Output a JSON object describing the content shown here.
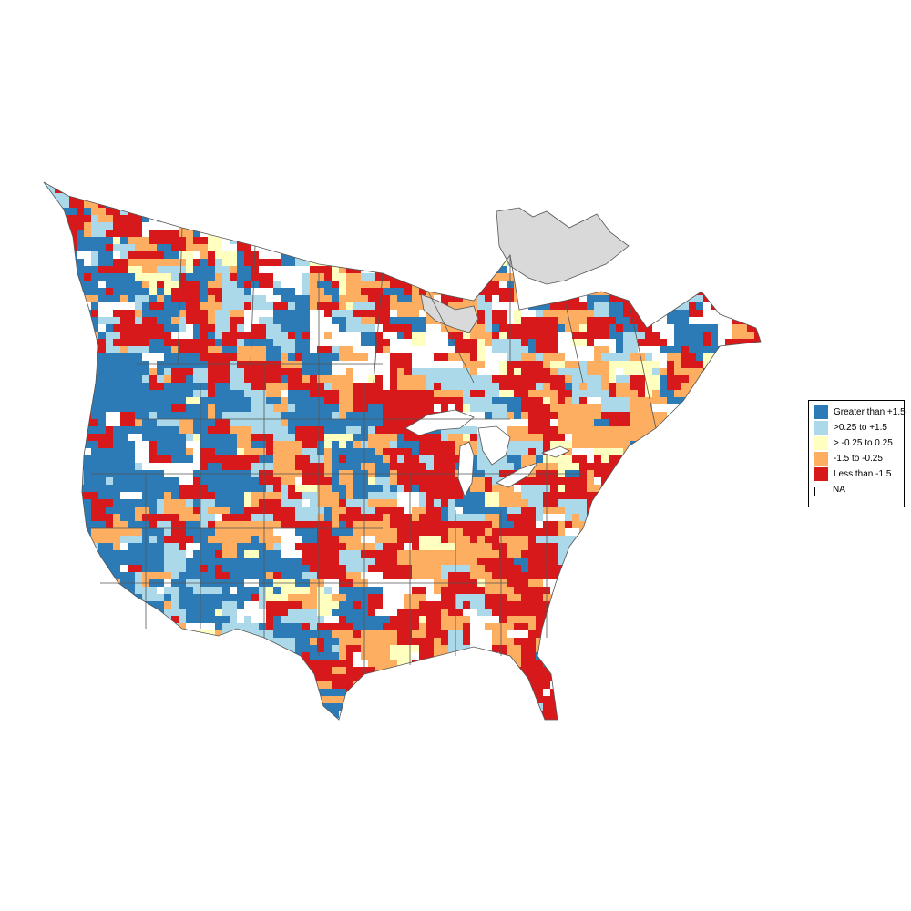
{
  "legend": {
    "items": [
      {
        "label": "Greater than +1.5",
        "color": "#2c7bb6"
      },
      {
        "label": ">0.25 to +1.5",
        "color": "#abd9e9"
      },
      {
        "label": "> -0.25 to 0.25",
        "color": "#ffffbf"
      },
      {
        "label": "-1.5 to -0.25",
        "color": "#fdae61"
      },
      {
        "label": "Less than -1.5",
        "color": "#d7191c"
      },
      {
        "label": "NA",
        "color": "#ffffff"
      }
    ]
  },
  "colors": {
    "boundary": "#555555",
    "na_region": "#d9d9d9",
    "water": "#ffffff"
  }
}
